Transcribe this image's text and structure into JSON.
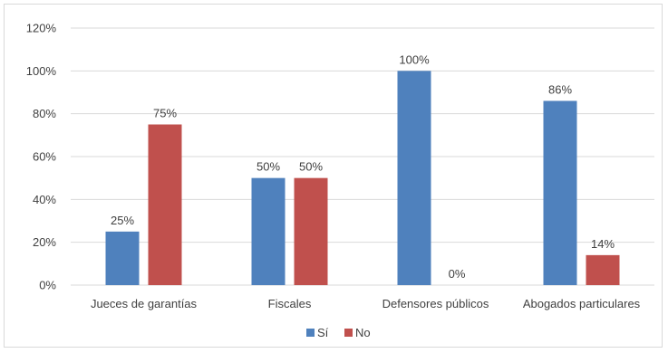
{
  "chart_data": {
    "type": "bar",
    "categories": [
      "Jueces de garantías",
      "Fiscales",
      "Defensores públicos",
      "Abogados particulares"
    ],
    "series": [
      {
        "name": "Sí",
        "values": [
          25,
          50,
          100,
          86
        ],
        "labels": [
          "25%",
          "50%",
          "100%",
          "86%"
        ],
        "color": "#4f81bd"
      },
      {
        "name": "No",
        "values": [
          75,
          50,
          0,
          14
        ],
        "labels": [
          "75%",
          "50%",
          "0%",
          "14%"
        ],
        "color": "#c0504d"
      }
    ],
    "y_ticks": [
      0,
      20,
      40,
      60,
      80,
      100,
      120
    ],
    "y_tick_labels": [
      "0%",
      "20%",
      "40%",
      "60%",
      "80%",
      "100%",
      "120%"
    ],
    "ylim": [
      0,
      120
    ],
    "grid": true,
    "gridline_color": "#d9d9d9",
    "legend_position": "bottom"
  }
}
